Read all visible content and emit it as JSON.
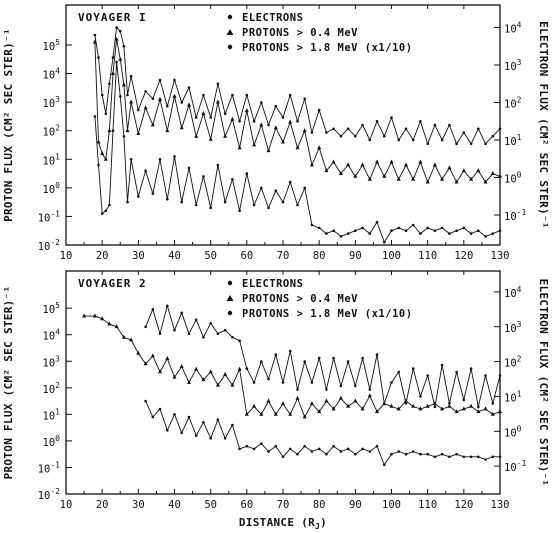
{
  "chart_data": [
    {
      "type": "line",
      "title": "VOYAGER I",
      "xlabel": "",
      "ylabel_left": "PROTON FLUX (CM² SEC STER)⁻¹",
      "ylabel_right": "ELECTRON FLUX (CM² SEC STER)⁻¹",
      "x_ticks": [
        "10",
        "20",
        "30",
        "40",
        "50",
        "60",
        "70",
        "80",
        "90",
        "100",
        "110",
        "120",
        "130"
      ],
      "y_ticks_left": [
        {
          "base": "10",
          "exp": "-2"
        },
        {
          "base": "10",
          "exp": "-1"
        },
        {
          "base": "10",
          "exp": "0"
        },
        {
          "base": "10",
          "exp": "1"
        },
        {
          "base": "10",
          "exp": "2"
        },
        {
          "base": "10",
          "exp": "3"
        },
        {
          "base": "10",
          "exp": "4"
        },
        {
          "base": "10",
          "exp": "5"
        }
      ],
      "y_ticks_right": [
        {
          "base": "10",
          "exp": "-1"
        },
        {
          "base": "10",
          "exp": "0"
        },
        {
          "base": "10",
          "exp": "1"
        },
        {
          "base": "10",
          "exp": "2"
        },
        {
          "base": "10",
          "exp": "3"
        },
        {
          "base": "10",
          "exp": "4"
        }
      ],
      "xlim": [
        10,
        130
      ],
      "ylim_left_log10": [
        -2,
        6.4
      ],
      "ylim_right_log10": [
        -1.8,
        4.6
      ],
      "y_scale": "log",
      "legend_position": "top-center",
      "legend": [
        {
          "marker": "dot",
          "label": "ELECTRONS"
        },
        {
          "marker": "triangle",
          "label": "PROTONS > 0.4 MeV"
        },
        {
          "marker": "dot",
          "label": "PROTONS > 1.8 MeV (x1/10)"
        }
      ],
      "series": [
        {
          "name": "ELECTRONS",
          "axis": "right",
          "x": [
            18,
            19,
            20,
            21,
            22,
            23,
            24,
            25,
            26,
            27,
            28,
            30,
            32,
            34,
            36,
            38,
            40,
            42,
            44,
            46,
            48,
            50,
            52,
            54,
            56,
            58,
            60,
            62,
            64,
            66,
            68,
            70,
            72,
            74,
            76,
            78,
            80,
            82,
            84,
            86,
            88,
            90,
            92,
            94,
            96,
            98,
            100,
            102,
            104,
            106,
            108,
            110,
            112,
            114,
            116,
            118,
            120,
            122,
            124,
            126,
            128,
            130
          ],
          "y_log10": [
            3.8,
            3.2,
            2.2,
            1.7,
            2.5,
            3.2,
            4.0,
            3.9,
            3.5,
            2.2,
            2.7,
            1.8,
            2.3,
            2.1,
            2.6,
            1.9,
            2.6,
            2.0,
            2.4,
            1.6,
            2.2,
            1.6,
            2.5,
            1.7,
            2.2,
            1.5,
            2.2,
            1.5,
            2.0,
            1.4,
            1.9,
            1.6,
            2.2,
            1.5,
            2.1,
            1.2,
            1.8,
            1.2,
            1.3,
            1.1,
            1.3,
            1.1,
            1.4,
            1.0,
            1.5,
            1.1,
            1.6,
            1.0,
            1.3,
            1.0,
            1.5,
            0.9,
            1.4,
            1.0,
            1.4,
            0.9,
            1.2,
            0.9,
            1.3,
            0.9,
            1.1,
            1.3
          ]
        },
        {
          "name": "PROTONS > 0.4 MeV",
          "axis": "left",
          "x": [
            18,
            19,
            20,
            21,
            22,
            23,
            24,
            25,
            26,
            27,
            28,
            30,
            32,
            34,
            36,
            38,
            40,
            42,
            44,
            46,
            48,
            50,
            52,
            54,
            56,
            58,
            60,
            62,
            64,
            66,
            68,
            70,
            72,
            74,
            76,
            78,
            80,
            82,
            84,
            86,
            88,
            90,
            92,
            94,
            96,
            98,
            100,
            102,
            104,
            106,
            108,
            110,
            112,
            114,
            116,
            118,
            120,
            122,
            124,
            126,
            128,
            130
          ],
          "y_log10": [
            5.1,
            1.6,
            1.2,
            1.0,
            2.0,
            4.0,
            5.2,
            4.5,
            3.6,
            2.0,
            3.0,
            1.9,
            2.8,
            2.2,
            3.1,
            2.0,
            3.2,
            2.1,
            2.9,
            1.8,
            2.6,
            1.7,
            3.0,
            1.8,
            2.4,
            1.4,
            2.7,
            1.5,
            2.2,
            1.3,
            2.1,
            1.6,
            2.3,
            1.4,
            2.0,
            0.8,
            1.4,
            0.6,
            0.9,
            0.5,
            0.8,
            0.4,
            0.8,
            0.3,
            0.9,
            0.4,
            0.9,
            0.3,
            0.8,
            0.3,
            0.9,
            0.2,
            0.8,
            0.3,
            0.7,
            0.2,
            0.6,
            0.3,
            0.6,
            0.2,
            0.5,
            0.4
          ]
        },
        {
          "name": "PROTONS > 1.8 MeV (x1/10)",
          "axis": "left",
          "x": [
            18,
            19,
            20,
            21,
            22,
            23,
            24,
            25,
            26,
            27,
            28,
            30,
            32,
            34,
            36,
            38,
            40,
            42,
            44,
            46,
            48,
            50,
            52,
            54,
            56,
            58,
            60,
            62,
            64,
            66,
            68,
            70,
            72,
            74,
            76,
            78,
            80,
            82,
            84,
            86,
            88,
            90,
            92,
            94,
            96,
            98,
            100,
            102,
            104,
            106,
            108,
            110,
            112,
            114,
            116,
            118,
            120,
            122,
            124,
            126,
            128,
            130
          ],
          "y_log10": [
            2.5,
            0.8,
            -0.9,
            -0.8,
            -0.6,
            2.0,
            4.4,
            3.2,
            1.8,
            -0.5,
            1.0,
            -0.3,
            0.6,
            -0.2,
            1.0,
            -0.4,
            1.1,
            -0.5,
            0.7,
            -0.6,
            0.4,
            -0.7,
            0.8,
            -0.5,
            0.3,
            -0.8,
            0.5,
            -0.6,
            0.0,
            -0.7,
            -0.1,
            -0.5,
            0.2,
            -0.6,
            0.0,
            -1.3,
            -1.4,
            -1.6,
            -1.5,
            -1.7,
            -1.6,
            -1.5,
            -1.4,
            -1.6,
            -1.2,
            -1.9,
            -1.5,
            -1.4,
            -1.5,
            -1.3,
            -1.6,
            -1.4,
            -1.5,
            -1.4,
            -1.6,
            -1.5,
            -1.4,
            -1.6,
            -1.5,
            -1.7,
            -1.6,
            -1.5
          ]
        }
      ]
    },
    {
      "type": "line",
      "title": "VOYAGER 2",
      "xlabel": "DISTANCE (R",
      "xlabel_sub": "J",
      "xlabel_end": ")",
      "ylabel_left": "PROTON FLUX (CM² SEC STER)⁻¹",
      "ylabel_right": "ELECTRON FLUX (CM² SEC STER)⁻¹",
      "x_ticks": [
        "10",
        "20",
        "30",
        "40",
        "50",
        "60",
        "70",
        "80",
        "90",
        "100",
        "110",
        "120",
        "130"
      ],
      "y_ticks_left": [
        {
          "base": "10",
          "exp": "-2"
        },
        {
          "base": "10",
          "exp": "-1"
        },
        {
          "base": "10",
          "exp": "0"
        },
        {
          "base": "10",
          "exp": "1"
        },
        {
          "base": "10",
          "exp": "2"
        },
        {
          "base": "10",
          "exp": "3"
        },
        {
          "base": "10",
          "exp": "4"
        },
        {
          "base": "10",
          "exp": "5"
        }
      ],
      "y_ticks_right": [
        {
          "base": "10",
          "exp": "-1"
        },
        {
          "base": "10",
          "exp": "0"
        },
        {
          "base": "10",
          "exp": "1"
        },
        {
          "base": "10",
          "exp": "2"
        },
        {
          "base": "10",
          "exp": "3"
        },
        {
          "base": "10",
          "exp": "4"
        }
      ],
      "xlim": [
        10,
        130
      ],
      "ylim_left_log10": [
        -2,
        6.4
      ],
      "ylim_right_log10": [
        -1.8,
        4.6
      ],
      "y_scale": "log",
      "legend_position": "top-center",
      "legend": [
        {
          "marker": "dot",
          "label": "ELECTRONS"
        },
        {
          "marker": "triangle",
          "label": "PROTONS > 0.4 MeV"
        },
        {
          "marker": "dot",
          "label": "PROTONS > 1.8 MeV (x1/10)"
        }
      ],
      "series": [
        {
          "name": "ELECTRONS",
          "axis": "right",
          "x": [
            32,
            34,
            36,
            38,
            40,
            42,
            44,
            46,
            48,
            50,
            52,
            54,
            56,
            58,
            60,
            62,
            64,
            66,
            68,
            70,
            72,
            74,
            76,
            78,
            80,
            82,
            84,
            86,
            88,
            90,
            92,
            94,
            96,
            98,
            100,
            102,
            104,
            106,
            108,
            110,
            112,
            114,
            116,
            118,
            120,
            122,
            124,
            126,
            128,
            130
          ],
          "y_log10": [
            3.0,
            3.5,
            2.8,
            3.6,
            2.9,
            3.4,
            2.8,
            3.2,
            2.7,
            3.1,
            2.8,
            2.9,
            2.7,
            2.6,
            1.8,
            1.4,
            2.0,
            1.5,
            2.2,
            1.4,
            2.3,
            1.2,
            2.0,
            1.4,
            2.1,
            1.2,
            2.1,
            1.3,
            2.0,
            1.3,
            2.1,
            1.2,
            2.2,
            0.8,
            1.4,
            1.7,
            0.8,
            1.8,
            1.0,
            1.6,
            0.7,
            1.9,
            0.8,
            1.7,
            0.9,
            1.8,
            0.7,
            1.6,
            0.8,
            1.6
          ]
        },
        {
          "name": "PROTONS > 0.4 MeV",
          "axis": "left",
          "x": [
            15,
            18,
            20,
            22,
            24,
            26,
            28,
            30,
            32,
            34,
            36,
            38,
            40,
            42,
            44,
            46,
            48,
            50,
            52,
            54,
            56,
            58,
            60,
            62,
            64,
            66,
            68,
            70,
            72,
            74,
            76,
            78,
            80,
            82,
            84,
            86,
            88,
            90,
            92,
            94,
            96,
            98,
            100,
            102,
            104,
            106,
            108,
            110,
            112,
            114,
            116,
            118,
            120,
            122,
            124,
            126,
            128,
            130
          ],
          "y_log10": [
            4.7,
            4.7,
            4.6,
            4.4,
            4.3,
            3.9,
            3.8,
            3.3,
            2.9,
            3.2,
            2.6,
            3.1,
            2.4,
            2.8,
            2.2,
            2.7,
            2.3,
            2.6,
            2.1,
            2.5,
            2.1,
            2.7,
            1.0,
            1.3,
            1.0,
            1.5,
            1.0,
            1.4,
            1.0,
            1.6,
            0.9,
            1.4,
            1.1,
            1.5,
            1.2,
            1.6,
            1.3,
            1.5,
            1.2,
            1.7,
            1.1,
            1.4,
            1.3,
            1.2,
            1.5,
            1.3,
            1.2,
            1.3,
            1.4,
            1.2,
            1.3,
            1.1,
            1.2,
            1.3,
            1.1,
            1.2,
            1.0,
            1.1
          ]
        },
        {
          "name": "PROTONS > 1.8 MeV (x1/10)",
          "axis": "left",
          "x": [
            32,
            34,
            36,
            38,
            40,
            42,
            44,
            46,
            48,
            50,
            52,
            54,
            56,
            58,
            60,
            62,
            64,
            66,
            68,
            70,
            72,
            74,
            76,
            78,
            80,
            82,
            84,
            86,
            88,
            90,
            92,
            94,
            96,
            98,
            100,
            102,
            104,
            106,
            108,
            110,
            112,
            114,
            116,
            118,
            120,
            122,
            124,
            126,
            128,
            130
          ],
          "y_log10": [
            1.5,
            0.9,
            1.2,
            0.4,
            1.0,
            0.3,
            0.9,
            0.2,
            0.7,
            0.1,
            0.8,
            0.1,
            0.6,
            -0.3,
            -0.2,
            -0.3,
            -0.1,
            -0.4,
            -0.2,
            -0.6,
            -0.3,
            -0.5,
            -0.2,
            -0.4,
            -0.3,
            -0.5,
            -0.2,
            -0.4,
            -0.3,
            -0.5,
            -0.3,
            -0.4,
            -0.2,
            -0.9,
            -0.5,
            -0.4,
            -0.5,
            -0.4,
            -0.5,
            -0.5,
            -0.6,
            -0.5,
            -0.6,
            -0.5,
            -0.6,
            -0.6,
            -0.6,
            -0.7,
            -0.6,
            -0.6
          ]
        }
      ]
    }
  ]
}
